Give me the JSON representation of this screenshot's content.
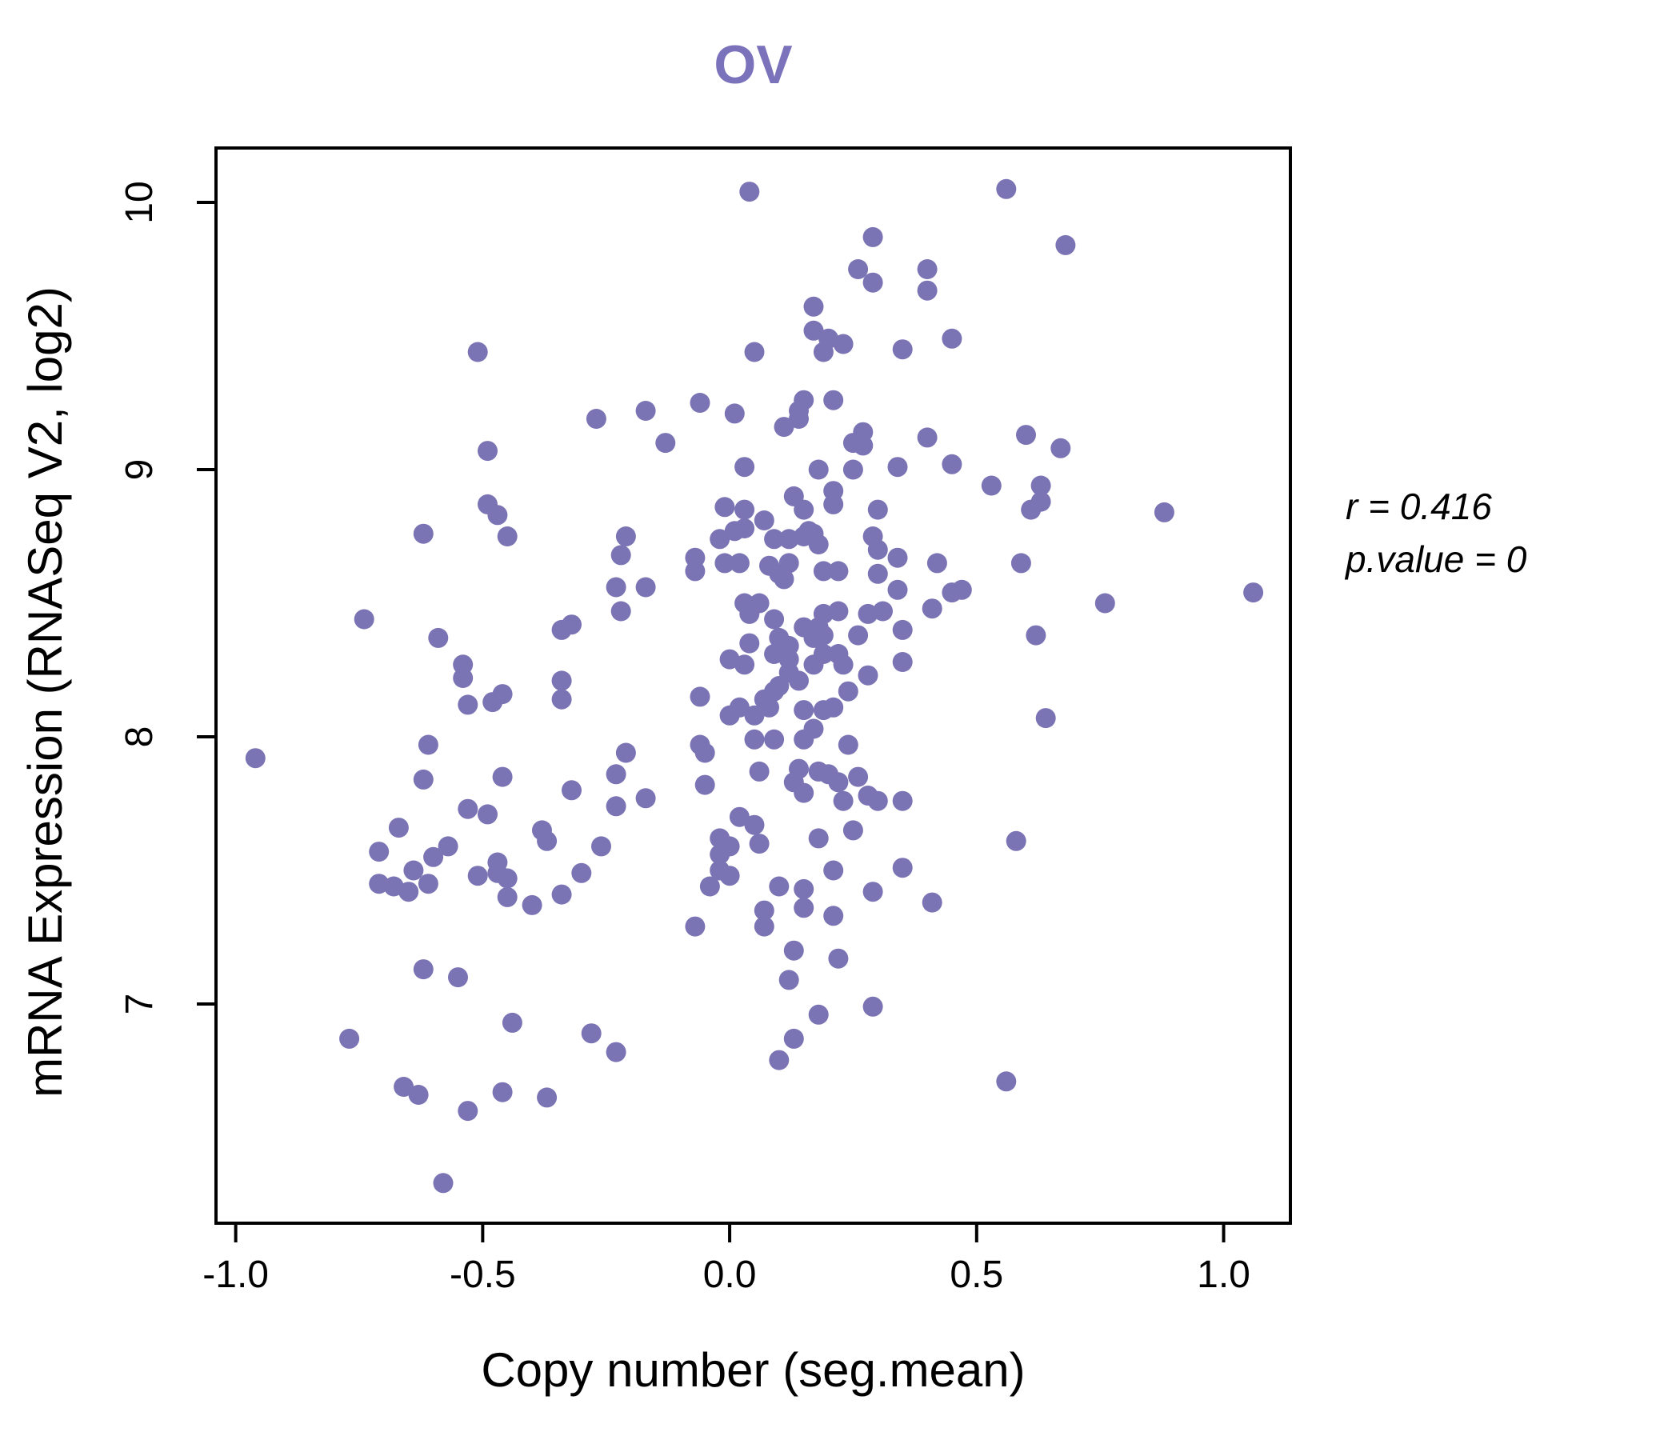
{
  "title": {
    "text": "OV",
    "color": "#7a72ba"
  },
  "annotation": {
    "line1": "r = 0.416",
    "line2": "p.value = 0"
  },
  "style": {
    "point_color": "#7a74b4",
    "point_radius": 12.5,
    "frame_color": "#000000",
    "background": "#ffffff"
  },
  "chart_data": {
    "type": "scatter",
    "title": "OV",
    "xlabel": "Copy number (seg.mean)",
    "ylabel": "mRNA Expression (RNASeq V2, log2)",
    "xlim": [
      -1.0399,
      1.1352
    ],
    "ylim": [
      6.1796,
      10.2036
    ],
    "x_ticks": [
      -1.0,
      -0.5,
      0.0,
      0.5,
      1.0
    ],
    "x_tick_labels": [
      "-1.0",
      "-0.5",
      "0.0",
      "0.5",
      "1.0"
    ],
    "y_ticks": [
      7,
      8,
      9,
      10
    ],
    "y_tick_labels": [
      "7",
      "8",
      "9",
      "10"
    ],
    "grid": false,
    "legend": "none",
    "annotations": [
      "r = 0.416",
      "p.value = 0"
    ],
    "points": [
      [
        -0.51,
        9.44
      ],
      [
        -0.49,
        9.07
      ],
      [
        -0.49,
        8.87
      ],
      [
        -0.47,
        8.83
      ],
      [
        0.04,
        10.04
      ],
      [
        0.29,
        9.87
      ],
      [
        0.26,
        9.75
      ],
      [
        0.29,
        9.7
      ],
      [
        0.4,
        9.75
      ],
      [
        0.4,
        9.67
      ],
      [
        0.17,
        9.61
      ],
      [
        0.17,
        9.52
      ],
      [
        0.2,
        9.49
      ],
      [
        0.23,
        9.47
      ],
      [
        0.19,
        9.44
      ],
      [
        0.35,
        9.45
      ],
      [
        0.05,
        9.44
      ],
      [
        -0.27,
        9.19
      ],
      [
        -0.17,
        9.22
      ],
      [
        -0.06,
        9.25
      ],
      [
        0.01,
        9.21
      ],
      [
        0.15,
        9.26
      ],
      [
        0.14,
        9.22
      ],
      [
        0.14,
        9.19
      ],
      [
        0.11,
        9.16
      ],
      [
        0.21,
        9.26
      ],
      [
        -0.13,
        9.1
      ],
      [
        0.27,
        9.14
      ],
      [
        0.27,
        9.09
      ],
      [
        0.25,
        9.1
      ],
      [
        0.4,
        9.12
      ],
      [
        0.03,
        9.01
      ],
      [
        0.18,
        9.0
      ],
      [
        0.25,
        9.0
      ],
      [
        0.34,
        9.01
      ],
      [
        0.13,
        8.9
      ],
      [
        0.21,
        8.92
      ],
      [
        0.21,
        8.87
      ],
      [
        0.56,
        10.05
      ],
      [
        0.68,
        9.84
      ],
      [
        0.45,
        9.49
      ],
      [
        0.6,
        9.13
      ],
      [
        0.67,
        9.08
      ],
      [
        0.45,
        9.02
      ],
      [
        0.53,
        8.94
      ],
      [
        0.63,
        8.94
      ],
      [
        0.63,
        8.88
      ],
      [
        0.61,
        8.85
      ],
      [
        0.88,
        8.84
      ],
      [
        -0.62,
        8.76
      ],
      [
        -0.45,
        8.75
      ],
      [
        -0.74,
        8.44
      ],
      [
        -0.59,
        8.37
      ],
      [
        -0.54,
        8.27
      ],
      [
        -0.54,
        8.22
      ],
      [
        -0.53,
        8.12
      ],
      [
        -0.48,
        8.13
      ],
      [
        -0.46,
        8.16
      ],
      [
        -0.34,
        8.4
      ],
      [
        -0.32,
        8.42
      ],
      [
        -0.34,
        8.21
      ],
      [
        -0.34,
        8.14
      ],
      [
        -0.61,
        7.97
      ],
      [
        -0.96,
        7.92
      ],
      [
        -0.62,
        7.84
      ],
      [
        -0.46,
        7.85
      ],
      [
        -0.32,
        7.8
      ],
      [
        -0.53,
        7.73
      ],
      [
        -0.49,
        7.71
      ],
      [
        -0.67,
        7.66
      ],
      [
        -0.71,
        7.57
      ],
      [
        -0.57,
        7.59
      ],
      [
        -0.6,
        7.55
      ],
      [
        -0.38,
        7.65
      ],
      [
        -0.37,
        7.61
      ],
      [
        -0.47,
        7.53
      ],
      [
        -0.01,
        8.86
      ],
      [
        0.03,
        8.85
      ],
      [
        0.07,
        8.81
      ],
      [
        0.15,
        8.85
      ],
      [
        0.3,
        8.85
      ],
      [
        0.01,
        8.77
      ],
      [
        0.03,
        8.78
      ],
      [
        -0.02,
        8.74
      ],
      [
        0.16,
        8.77
      ],
      [
        0.18,
        8.72
      ],
      [
        -0.21,
        8.75
      ],
      [
        0.09,
        8.74
      ],
      [
        0.12,
        8.74
      ],
      [
        0.15,
        8.75
      ],
      [
        0.17,
        8.76
      ],
      [
        -0.22,
        8.68
      ],
      [
        -0.07,
        8.67
      ],
      [
        0.29,
        8.75
      ],
      [
        0.3,
        8.7
      ],
      [
        0.34,
        8.67
      ],
      [
        0.42,
        8.65
      ],
      [
        -0.01,
        8.65
      ],
      [
        0.02,
        8.65
      ],
      [
        0.08,
        8.64
      ],
      [
        0.12,
        8.65
      ],
      [
        0.1,
        8.61
      ],
      [
        0.19,
        8.62
      ],
      [
        0.22,
        8.62
      ],
      [
        -0.07,
        8.62
      ],
      [
        0.3,
        8.61
      ],
      [
        -0.23,
        8.56
      ],
      [
        -0.17,
        8.56
      ],
      [
        0.11,
        8.59
      ],
      [
        0.34,
        8.55
      ],
      [
        -0.22,
        8.47
      ],
      [
        0.03,
        8.5
      ],
      [
        0.06,
        8.5
      ],
      [
        0.04,
        8.46
      ],
      [
        0.09,
        8.44
      ],
      [
        0.19,
        8.46
      ],
      [
        0.22,
        8.47
      ],
      [
        0.28,
        8.46
      ],
      [
        0.31,
        8.47
      ],
      [
        0.41,
        8.48
      ],
      [
        0.15,
        8.41
      ],
      [
        0.18,
        8.41
      ],
      [
        0.19,
        8.38
      ],
      [
        0.17,
        8.37
      ],
      [
        0.26,
        8.38
      ],
      [
        0.1,
        8.37
      ],
      [
        0.12,
        8.34
      ],
      [
        0.04,
        8.35
      ],
      [
        0.35,
        8.4
      ],
      [
        0.0,
        8.29
      ],
      [
        0.03,
        8.27
      ],
      [
        0.09,
        8.31
      ],
      [
        0.12,
        8.29
      ],
      [
        0.19,
        8.31
      ],
      [
        0.17,
        8.27
      ],
      [
        0.22,
        8.31
      ],
      [
        0.23,
        8.27
      ],
      [
        0.28,
        8.23
      ],
      [
        0.35,
        8.28
      ],
      [
        0.12,
        8.24
      ],
      [
        0.14,
        8.21
      ],
      [
        0.1,
        8.19
      ],
      [
        0.09,
        8.17
      ],
      [
        0.24,
        8.17
      ],
      [
        -0.06,
        8.15
      ],
      [
        0.07,
        8.14
      ],
      [
        0.08,
        8.11
      ],
      [
        0.02,
        8.11
      ],
      [
        0.0,
        8.08
      ],
      [
        0.05,
        8.08
      ],
      [
        0.15,
        8.1
      ],
      [
        0.19,
        8.1
      ],
      [
        0.21,
        8.11
      ],
      [
        -0.06,
        7.97
      ],
      [
        -0.05,
        7.94
      ],
      [
        0.05,
        7.99
      ],
      [
        0.09,
        7.99
      ],
      [
        0.15,
        7.99
      ],
      [
        0.17,
        8.03
      ],
      [
        0.24,
        7.97
      ],
      [
        -0.21,
        7.94
      ],
      [
        -0.23,
        7.86
      ],
      [
        0.06,
        7.87
      ],
      [
        0.14,
        7.88
      ],
      [
        0.13,
        7.83
      ],
      [
        0.15,
        7.79
      ],
      [
        0.18,
        7.87
      ],
      [
        0.2,
        7.86
      ],
      [
        0.22,
        7.83
      ],
      [
        0.26,
        7.85
      ],
      [
        0.28,
        7.78
      ],
      [
        0.3,
        7.76
      ],
      [
        0.23,
        7.76
      ],
      [
        0.35,
        7.76
      ],
      [
        -0.05,
        7.82
      ],
      [
        -0.17,
        7.77
      ],
      [
        -0.23,
        7.74
      ],
      [
        -0.26,
        7.59
      ],
      [
        0.02,
        7.7
      ],
      [
        0.05,
        7.67
      ],
      [
        -0.02,
        7.62
      ],
      [
        0.0,
        7.59
      ],
      [
        -0.02,
        7.56
      ],
      [
        0.06,
        7.6
      ],
      [
        0.18,
        7.62
      ],
      [
        0.25,
        7.65
      ],
      [
        0.59,
        8.65
      ],
      [
        0.45,
        8.54
      ],
      [
        0.47,
        8.55
      ],
      [
        0.76,
        8.5
      ],
      [
        1.06,
        8.54
      ],
      [
        0.62,
        8.38
      ],
      [
        0.64,
        8.07
      ],
      [
        0.58,
        7.61
      ],
      [
        -0.71,
        7.45
      ],
      [
        -0.68,
        7.44
      ],
      [
        -0.64,
        7.5
      ],
      [
        -0.65,
        7.42
      ],
      [
        -0.61,
        7.45
      ],
      [
        -0.51,
        7.48
      ],
      [
        -0.47,
        7.49
      ],
      [
        -0.45,
        7.47
      ],
      [
        -0.45,
        7.4
      ],
      [
        -0.4,
        7.37
      ],
      [
        -0.34,
        7.41
      ],
      [
        -0.62,
        7.13
      ],
      [
        -0.55,
        7.1
      ],
      [
        -0.44,
        6.93
      ],
      [
        -0.77,
        6.87
      ],
      [
        -0.66,
        6.69
      ],
      [
        -0.63,
        6.66
      ],
      [
        -0.53,
        6.6
      ],
      [
        -0.46,
        6.67
      ],
      [
        -0.37,
        6.65
      ],
      [
        -0.58,
        6.33
      ],
      [
        -0.3,
        7.49
      ],
      [
        -0.02,
        7.5
      ],
      [
        0.0,
        7.48
      ],
      [
        0.21,
        7.5
      ],
      [
        0.35,
        7.51
      ],
      [
        -0.04,
        7.44
      ],
      [
        0.1,
        7.44
      ],
      [
        0.15,
        7.43
      ],
      [
        0.15,
        7.36
      ],
      [
        0.07,
        7.35
      ],
      [
        0.07,
        7.29
      ],
      [
        0.21,
        7.33
      ],
      [
        0.29,
        7.42
      ],
      [
        0.41,
        7.38
      ],
      [
        -0.07,
        7.29
      ],
      [
        0.13,
        7.2
      ],
      [
        0.22,
        7.17
      ],
      [
        0.12,
        7.09
      ],
      [
        0.18,
        6.96
      ],
      [
        0.29,
        6.99
      ],
      [
        0.13,
        6.87
      ],
      [
        -0.28,
        6.89
      ],
      [
        -0.23,
        6.82
      ],
      [
        0.1,
        6.79
      ],
      [
        0.56,
        6.71
      ]
    ]
  }
}
